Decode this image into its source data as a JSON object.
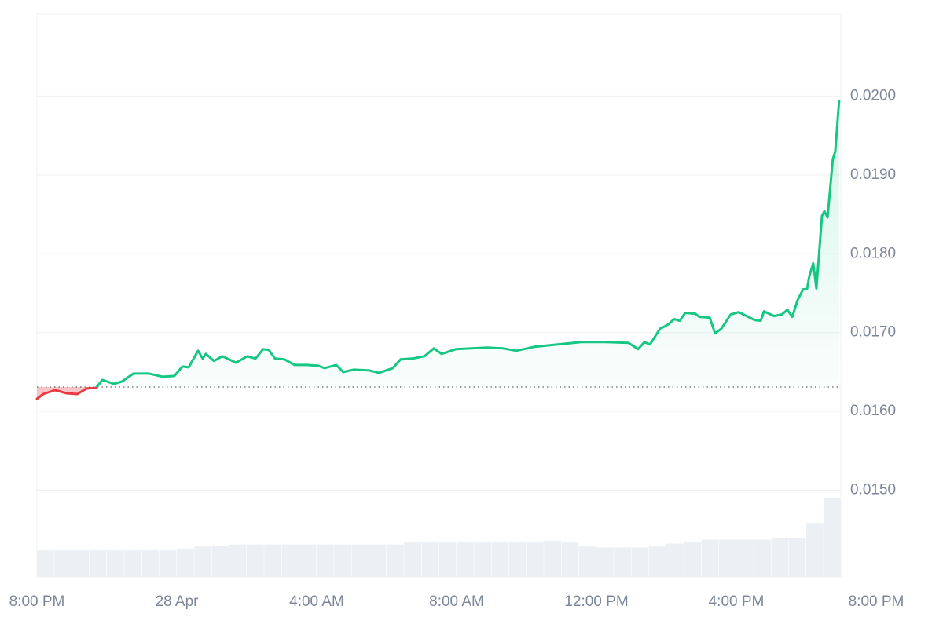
{
  "chart_data": {
    "type": "line",
    "x": [
      0,
      0.18,
      0.52,
      0.85,
      1.15,
      1.42,
      1.69,
      1.87,
      2.2,
      2.43,
      2.76,
      3.21,
      3.6,
      3.93,
      4.16,
      4.34,
      4.61,
      4.74,
      4.83,
      5.06,
      5.3,
      5.69,
      6.02,
      6.25,
      6.47,
      6.63,
      6.81,
      7.08,
      7.37,
      7.71,
      8.04,
      8.22,
      8.56,
      8.76,
      9.06,
      9.51,
      9.78,
      10.18,
      10.4,
      10.74,
      11.08,
      11.35,
      11.57,
      11.98,
      12.43,
      12.88,
      13.33,
      13.71,
      14.22,
      14.67,
      15.57,
      16.25,
      16.92,
      17.19,
      17.37,
      17.53,
      17.82,
      18.04,
      18.22,
      18.38,
      18.54,
      18.83,
      18.94,
      19.24,
      19.39,
      19.57,
      19.84,
      20.07,
      20.29,
      20.52,
      20.7,
      20.79,
      21.08,
      21.3,
      21.46,
      21.6,
      21.75,
      21.91,
      22.02,
      22.09,
      22.2,
      22.29,
      22.45,
      22.52,
      22.61,
      22.76,
      22.83,
      22.94
    ],
    "series": [
      {
        "color": "#16c784",
        "color_below": "#ea3943",
        "values": [
          0.01616,
          0.01622,
          0.01627,
          0.01623,
          0.01622,
          0.01629,
          0.0163,
          0.0164,
          0.01635,
          0.01638,
          0.01648,
          0.01648,
          0.01644,
          0.01645,
          0.01657,
          0.01656,
          0.01677,
          0.01667,
          0.01673,
          0.01664,
          0.0167,
          0.01662,
          0.0167,
          0.01667,
          0.01679,
          0.01678,
          0.01667,
          0.01666,
          0.01659,
          0.01659,
          0.01658,
          0.01655,
          0.01659,
          0.0165,
          0.01653,
          0.01652,
          0.01649,
          0.01655,
          0.01666,
          0.01667,
          0.0167,
          0.0168,
          0.01673,
          0.01679,
          0.0168,
          0.01681,
          0.0168,
          0.01677,
          0.01682,
          0.01684,
          0.01688,
          0.01688,
          0.01687,
          0.01679,
          0.01688,
          0.01685,
          0.01705,
          0.0171,
          0.01717,
          0.01715,
          0.01725,
          0.01724,
          0.0172,
          0.01719,
          0.01699,
          0.01705,
          0.01723,
          0.01726,
          0.01721,
          0.01716,
          0.01715,
          0.01727,
          0.01721,
          0.01723,
          0.01729,
          0.0172,
          0.01741,
          0.01755,
          0.01755,
          0.01772,
          0.01788,
          0.01756,
          0.01848,
          0.01854,
          0.01846,
          0.0192,
          0.0193,
          0.01994
        ]
      }
    ],
    "baseline": 0.01631,
    "volume": {
      "color": "#eceff3",
      "x": [
        0,
        0.5,
        1,
        1.5,
        2,
        2.5,
        3,
        3.5,
        4,
        4.5,
        5,
        5.5,
        6,
        6.5,
        7,
        7.5,
        8,
        8.5,
        9,
        9.5,
        10,
        10.5,
        11,
        11.5,
        12,
        12.5,
        13,
        13.5,
        14,
        14.5,
        15,
        15.5,
        16,
        16.5,
        17,
        17.5,
        18,
        18.5,
        19,
        19.5,
        20,
        20.5,
        21,
        21.5,
        22,
        22.5
      ],
      "values": [
        27,
        27,
        27,
        27,
        27,
        27,
        27,
        27,
        29,
        31,
        32,
        33,
        33,
        33,
        33,
        33,
        33,
        33,
        33,
        33,
        33,
        35,
        35,
        35,
        35,
        35,
        35,
        35,
        35,
        37,
        35,
        31,
        30,
        30,
        30,
        31,
        34,
        36,
        38,
        38,
        38,
        38,
        40,
        40,
        55,
        80
      ]
    },
    "xlim": [
      0,
      24
    ],
    "xticks": [
      {
        "value": 0,
        "label": "8:00 PM"
      },
      {
        "value": 4,
        "label": "28 Apr"
      },
      {
        "value": 8,
        "label": "4:00 AM"
      },
      {
        "value": 12,
        "label": "8:00 AM"
      },
      {
        "value": 16,
        "label": "12:00 PM"
      },
      {
        "value": 20,
        "label": "4:00 PM"
      },
      {
        "value": 24,
        "label": "8:00 PM"
      }
    ],
    "ylim": [
      0.0139,
      0.02104
    ],
    "yticks": [
      {
        "value": 0.015,
        "label": "0.0150"
      },
      {
        "value": 0.016,
        "label": "0.0160"
      },
      {
        "value": 0.017,
        "label": "0.0170"
      },
      {
        "value": 0.018,
        "label": "0.0180"
      },
      {
        "value": 0.019,
        "label": "0.0190"
      },
      {
        "value": 0.02,
        "label": "0.0200"
      }
    ],
    "grid": true
  }
}
